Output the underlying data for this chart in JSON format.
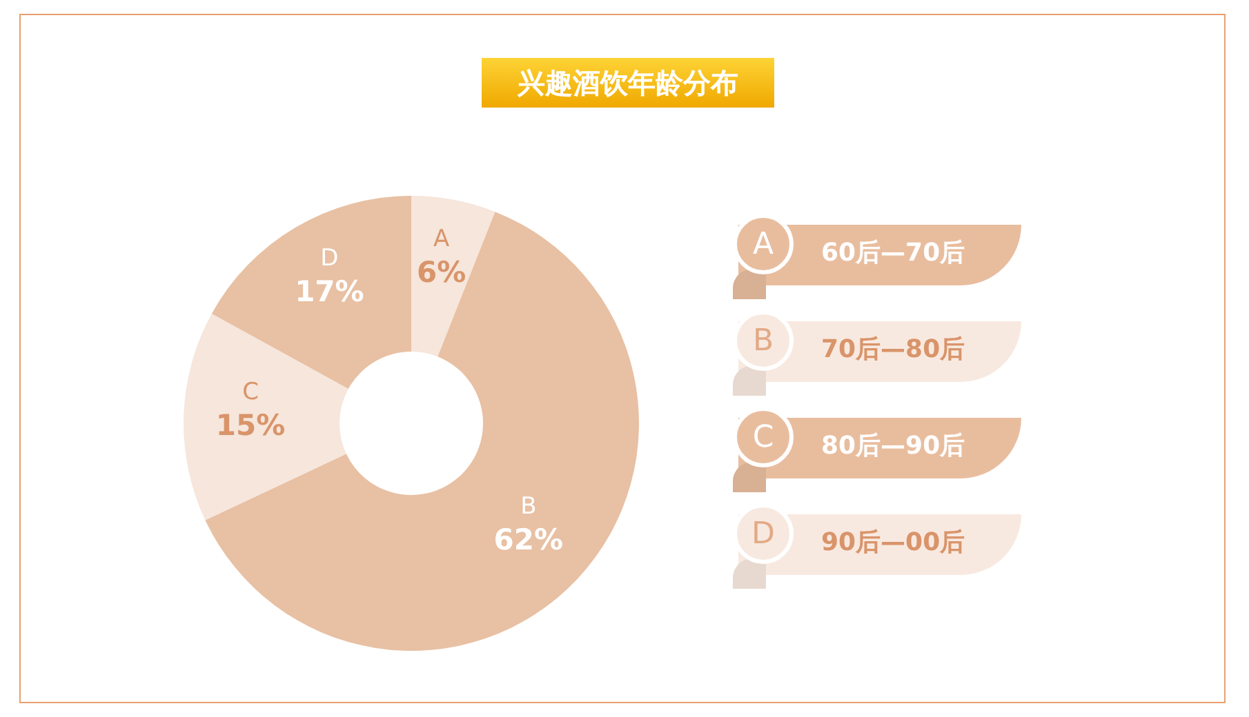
{
  "chart_data": {
    "type": "donut",
    "title": "兴趣酒饮年龄分布",
    "categories": [
      "A",
      "B",
      "C",
      "D"
    ],
    "values": [
      6,
      62,
      15,
      17
    ],
    "value_labels": [
      "6%",
      "62%",
      "15%",
      "17%"
    ],
    "colors": [
      "#f6e6dc",
      "#e8c0a3",
      "#f6e6dc",
      "#e8c0a3"
    ],
    "annotations": [
      "60后—70后",
      "70后—80后",
      "80后—90后",
      "90后—00后"
    ],
    "legend": "right"
  }
}
